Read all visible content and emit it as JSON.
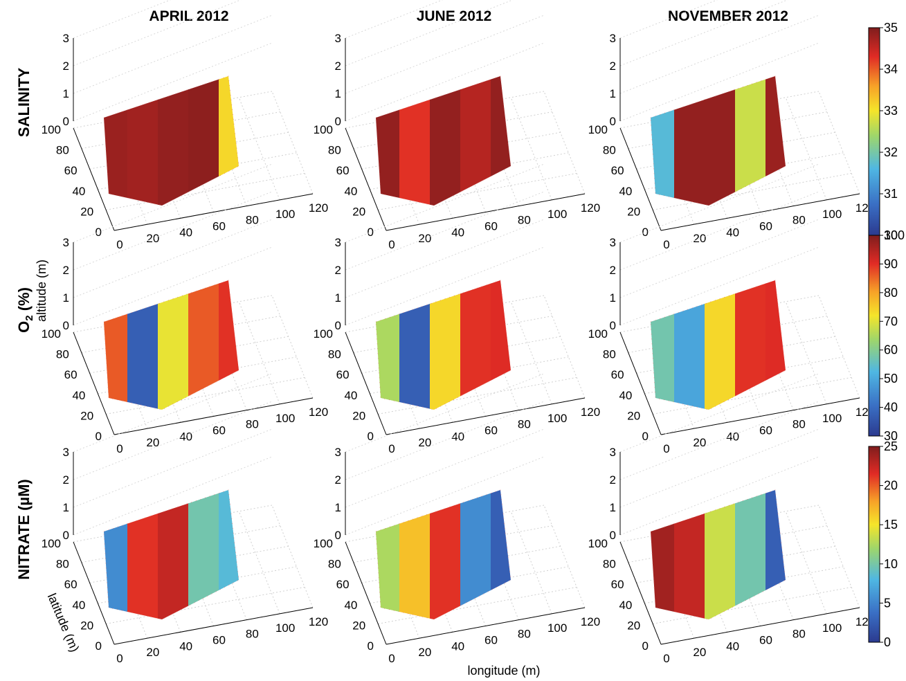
{
  "chart_data": {
    "type": "heatmap",
    "columns": [
      "APRIL 2012",
      "JUNE 2012",
      "NOVEMBER 2012"
    ],
    "rows": [
      {
        "label": "SALINITY",
        "colorbar": {
          "min": 30,
          "max": 35,
          "ticks": [
            30,
            31,
            32,
            33,
            34,
            35
          ]
        }
      },
      {
        "label": "O",
        "label_sub": "2",
        "label_rest": " (%)",
        "colorbar": {
          "min": 30,
          "max": 100,
          "ticks": [
            30,
            40,
            50,
            60,
            70,
            80,
            90,
            100
          ]
        }
      },
      {
        "label": "NITRATE (µM)",
        "colorbar": {
          "min": 0,
          "max": 25,
          "ticks": [
            0,
            5,
            10,
            15,
            20,
            25
          ]
        }
      }
    ],
    "axes": {
      "altitude_ticks": [
        0,
        1,
        2,
        3
      ],
      "latitude_ticks": [
        0,
        20,
        40,
        60,
        80,
        100
      ],
      "longitude_ticks": [
        0,
        20,
        40,
        60,
        80,
        100,
        120
      ],
      "xlabel": "longitude (m)",
      "ylabel": "latitude (m)",
      "zlabel": "altitude (m)"
    },
    "colormap": [
      "#2b3a8f",
      "#3a6fc4",
      "#4fb7e3",
      "#9fd66a",
      "#f5e52a",
      "#f7a128",
      "#e02b25",
      "#7f1d1d"
    ],
    "grid": true
  }
}
